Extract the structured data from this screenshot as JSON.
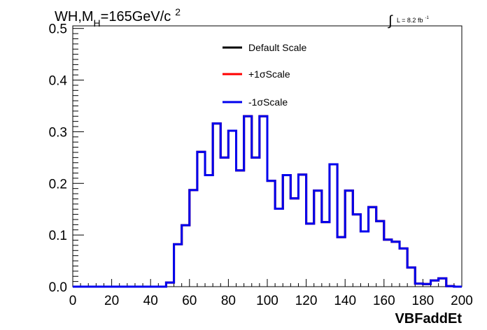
{
  "header": {
    "title_main": "WH,M",
    "title_sub": "H",
    "title_rest": "=165GeV/c",
    "title_sup": "2",
    "lumi_prefix": "∫",
    "lumi_text": "L = 8.2 fb",
    "lumi_sup": "-1"
  },
  "chart_data": {
    "type": "line",
    "xlabel": "VBFaddEt",
    "ylabel": "",
    "xlim": [
      0,
      200
    ],
    "ylim": [
      0,
      0.505
    ],
    "x_ticks": [
      0,
      20,
      40,
      60,
      80,
      100,
      120,
      140,
      160,
      180,
      200
    ],
    "y_ticks": [
      0.0,
      0.1,
      0.2,
      0.3,
      0.4,
      0.5
    ],
    "x_tick_labels": [
      "0",
      "20",
      "40",
      "60",
      "80",
      "100",
      "120",
      "140",
      "160",
      "180",
      "200"
    ],
    "y_tick_labels": [
      "0.0",
      "0.1",
      "0.2",
      "0.3",
      "0.4",
      "0.5"
    ],
    "legend_position": "top-center",
    "bin_edges": [
      0,
      4,
      8,
      12,
      16,
      20,
      24,
      28,
      32,
      36,
      40,
      44,
      48,
      52,
      56,
      60,
      64,
      68,
      72,
      76,
      80,
      84,
      88,
      92,
      96,
      100,
      104,
      108,
      112,
      116,
      120,
      124,
      128,
      132,
      136,
      140,
      144,
      148,
      152,
      156,
      160,
      164,
      168,
      172,
      176,
      180,
      184,
      188,
      192,
      196,
      200
    ],
    "series": [
      {
        "name": "Default Scale",
        "color": "#000000",
        "values": [
          0,
          0,
          0,
          0,
          0,
          0,
          0,
          0,
          0,
          0,
          0,
          0,
          0.008,
          0.082,
          0.119,
          0.187,
          0.261,
          0.216,
          0.316,
          0.25,
          0.302,
          0.225,
          0.33,
          0.25,
          0.33,
          0.205,
          0.151,
          0.216,
          0.171,
          0.217,
          0.122,
          0.186,
          0.125,
          0.237,
          0.096,
          0.186,
          0.14,
          0.107,
          0.154,
          0.127,
          0.091,
          0.087,
          0.074,
          0.037,
          0.006,
          0.005,
          0.012,
          0.016,
          0.001,
          0
        ]
      },
      {
        "name": "+1σScale",
        "color": "#ff0000",
        "values": [
          0,
          0,
          0,
          0,
          0,
          0,
          0,
          0,
          0,
          0,
          0,
          0,
          0.008,
          0.082,
          0.119,
          0.187,
          0.261,
          0.216,
          0.316,
          0.25,
          0.302,
          0.225,
          0.33,
          0.25,
          0.33,
          0.205,
          0.151,
          0.216,
          0.171,
          0.217,
          0.122,
          0.186,
          0.125,
          0.237,
          0.096,
          0.186,
          0.14,
          0.107,
          0.154,
          0.127,
          0.091,
          0.087,
          0.074,
          0.037,
          0.006,
          0.005,
          0.012,
          0.016,
          0.001,
          0
        ]
      },
      {
        "name": "-1σScale",
        "color": "#0000ee",
        "values": [
          0,
          0,
          0,
          0,
          0,
          0,
          0,
          0,
          0,
          0,
          0,
          0,
          0.008,
          0.082,
          0.119,
          0.187,
          0.261,
          0.216,
          0.316,
          0.25,
          0.302,
          0.225,
          0.33,
          0.25,
          0.33,
          0.205,
          0.151,
          0.216,
          0.171,
          0.217,
          0.122,
          0.186,
          0.125,
          0.237,
          0.096,
          0.186,
          0.14,
          0.107,
          0.154,
          0.127,
          0.091,
          0.087,
          0.074,
          0.037,
          0.006,
          0.005,
          0.012,
          0.016,
          0.001,
          0
        ]
      }
    ]
  }
}
